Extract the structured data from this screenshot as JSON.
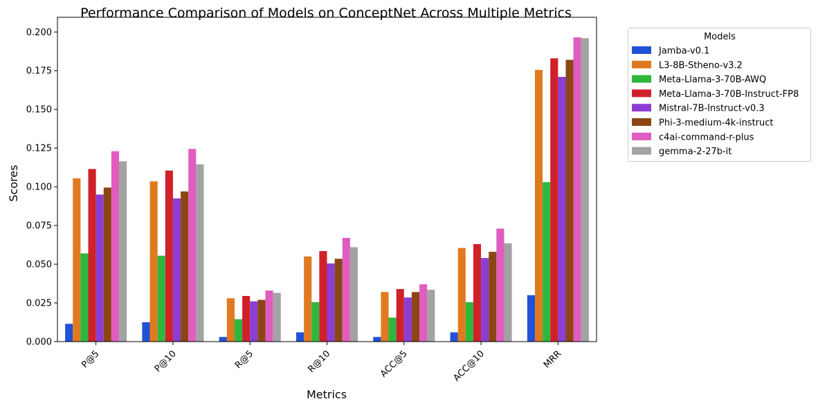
{
  "chart_data": {
    "type": "bar",
    "title": "Performance Comparison of Models on ConceptNet Across Multiple Metrics",
    "xlabel": "Metrics",
    "ylabel": "Scores",
    "ylim": [
      0,
      0.2095
    ],
    "yticks": [
      "0.000",
      "0.025",
      "0.050",
      "0.075",
      "0.100",
      "0.125",
      "0.150",
      "0.175",
      "0.200"
    ],
    "categories": [
      "P@5",
      "P@10",
      "R@5",
      "R@10",
      "ACC@5",
      "ACC@10",
      "MRR"
    ],
    "legend": {
      "title": "Models",
      "position": "outside-right"
    },
    "grid": false,
    "series": [
      {
        "name": "Jamba-v0.1",
        "color": "#2151d6",
        "values": [
          0.0115,
          0.0125,
          0.003,
          0.006,
          0.003,
          0.006,
          0.03
        ]
      },
      {
        "name": "L3-8B-Stheno-v3.2",
        "color": "#e07a20",
        "values": [
          0.1055,
          0.1035,
          0.028,
          0.055,
          0.032,
          0.0605,
          0.1755
        ]
      },
      {
        "name": "Meta-Llama-3-70B-AWQ",
        "color": "#2db83d",
        "values": [
          0.057,
          0.0555,
          0.0145,
          0.0255,
          0.0155,
          0.0255,
          0.103
        ]
      },
      {
        "name": "Meta-Llama-3-70B-Instruct-FP8",
        "color": "#d0202a",
        "values": [
          0.1115,
          0.1105,
          0.0295,
          0.0585,
          0.034,
          0.063,
          0.183
        ]
      },
      {
        "name": "Mistral-7B-Instruct-v0.3",
        "color": "#8a3ed2",
        "values": [
          0.095,
          0.0925,
          0.026,
          0.0505,
          0.0285,
          0.054,
          0.171
        ]
      },
      {
        "name": "Phi-3-medium-4k-instruct",
        "color": "#8b4614",
        "values": [
          0.0995,
          0.097,
          0.027,
          0.0535,
          0.032,
          0.058,
          0.182
        ]
      },
      {
        "name": "c4ai-command-r-plus",
        "color": "#e05dbf",
        "values": [
          0.123,
          0.1245,
          0.033,
          0.067,
          0.037,
          0.073,
          0.1965
        ]
      },
      {
        "name": "gemma-2-27b-it",
        "color": "#a3a3a3",
        "values": [
          0.1165,
          0.1145,
          0.0315,
          0.061,
          0.0335,
          0.0635,
          0.196
        ]
      }
    ]
  }
}
